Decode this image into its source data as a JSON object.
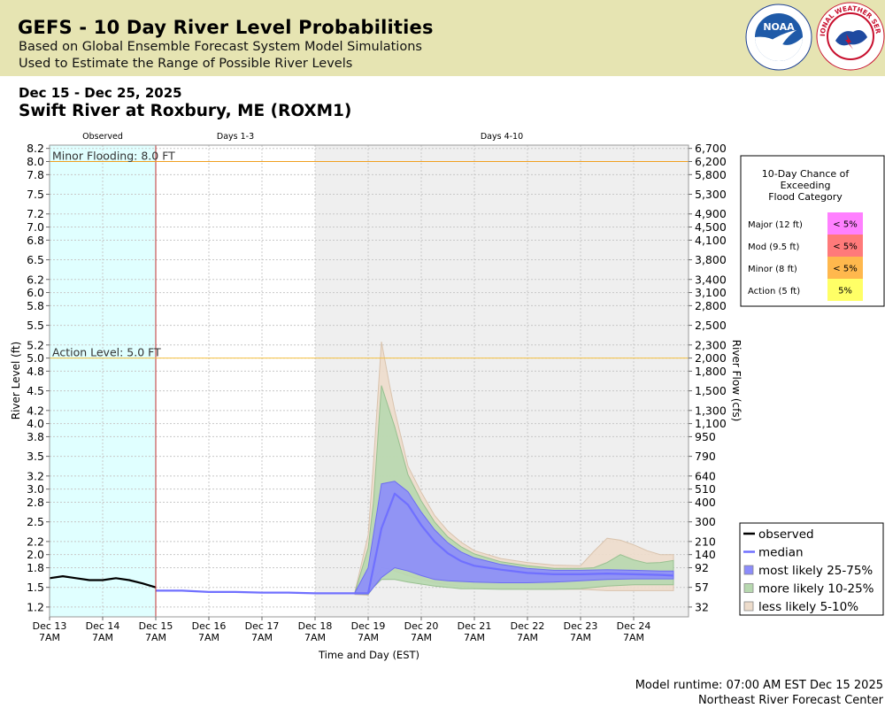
{
  "header": {
    "title": "GEFS - 10 Day River Level Probabilities",
    "subtitle1": "Based on Global Ensemble Forecast System Model Simulations",
    "subtitle2": "Used to Estimate the Range of Possible River Levels",
    "date_range": "Dec 15 - Dec 25, 2025",
    "station": "Swift River at Roxbury, ME (ROXM1)"
  },
  "logos": {
    "noaa_text": "NOAA",
    "nws_text": "NATIONAL WEATHER SERVICE"
  },
  "footer": {
    "runtime": "Model runtime: 07:00 AM EST Dec 15 2025",
    "center": "Northeast River Forecast Center"
  },
  "colors": {
    "observed_shade": "#e0ffff",
    "forecast_shade": "#efefef",
    "flood_line": "#f0a020",
    "action_line": "#f5c040",
    "median": "#7070ff",
    "band_25_75": "#8c8cfb",
    "band_10_25": "#b7d8af",
    "band_5_10": "#eddccb",
    "observed_line": "#000000"
  },
  "chart_data": {
    "type": "area",
    "periods": [
      "Observed",
      "Days 1-3",
      "Days 4-10"
    ],
    "xlabel": "Time and Day (EST)",
    "ylabel": "River Level (ft)",
    "ylabel_right": "River Flow (cfs)",
    "ylim": [
      1.05,
      8.25
    ],
    "grid": true,
    "x_ticks": [
      {
        "day": "Dec 13",
        "time": "7AM",
        "t": 0
      },
      {
        "day": "Dec 14",
        "time": "7AM",
        "t": 1
      },
      {
        "day": "Dec 15",
        "time": "7AM",
        "t": 2
      },
      {
        "day": "Dec 16",
        "time": "7AM",
        "t": 3
      },
      {
        "day": "Dec 17",
        "time": "7AM",
        "t": 4
      },
      {
        "day": "Dec 18",
        "time": "7AM",
        "t": 5
      },
      {
        "day": "Dec 19",
        "time": "7AM",
        "t": 6
      },
      {
        "day": "Dec 20",
        "time": "7AM",
        "t": 7
      },
      {
        "day": "Dec 21",
        "time": "7AM",
        "t": 8
      },
      {
        "day": "Dec 22",
        "time": "7AM",
        "t": 9
      },
      {
        "day": "Dec 23",
        "time": "7AM",
        "t": 10
      },
      {
        "day": "Dec 24",
        "time": "7AM",
        "t": 11
      }
    ],
    "left_ticks": [
      1.2,
      1.5,
      1.8,
      2.0,
      2.2,
      2.5,
      2.8,
      3.0,
      3.2,
      3.5,
      3.8,
      4.0,
      4.2,
      4.5,
      4.8,
      5.0,
      5.2,
      5.5,
      5.8,
      6.0,
      6.2,
      6.5,
      6.8,
      7.0,
      7.2,
      7.5,
      7.8,
      8.0,
      8.2
    ],
    "left_tick_labels": [
      "1.2",
      "1.5",
      "1.8",
      "2.0",
      "2.2",
      "2.5",
      "2.8",
      "3.0",
      "3.2",
      "3.5",
      "3.8",
      "4.0",
      "4.2",
      "4.5",
      "4.8",
      "5.0",
      "5.2",
      "5.5",
      "5.8",
      "6.0",
      "6.2",
      "6.5",
      "6.8",
      "7.0",
      "7.2",
      "7.5",
      "7.8",
      "8.0",
      "8.2"
    ],
    "right_ticks": [
      {
        "stage": 1.2,
        "label": "32"
      },
      {
        "stage": 1.5,
        "label": "57"
      },
      {
        "stage": 1.8,
        "label": "92"
      },
      {
        "stage": 2.0,
        "label": "140"
      },
      {
        "stage": 2.2,
        "label": "210"
      },
      {
        "stage": 2.5,
        "label": "300"
      },
      {
        "stage": 2.8,
        "label": "400"
      },
      {
        "stage": 3.0,
        "label": "510"
      },
      {
        "stage": 3.2,
        "label": "640"
      },
      {
        "stage": 3.5,
        "label": "790"
      },
      {
        "stage": 3.8,
        "label": "950"
      },
      {
        "stage": 4.0,
        "label": "1,100"
      },
      {
        "stage": 4.2,
        "label": "1,300"
      },
      {
        "stage": 4.5,
        "label": "1,500"
      },
      {
        "stage": 4.8,
        "label": "1,800"
      },
      {
        "stage": 5.0,
        "label": "2,000"
      },
      {
        "stage": 5.2,
        "label": "2,300"
      },
      {
        "stage": 5.5,
        "label": "2,500"
      },
      {
        "stage": 5.8,
        "label": "2,800"
      },
      {
        "stage": 6.0,
        "label": "3,100"
      },
      {
        "stage": 6.2,
        "label": "3,400"
      },
      {
        "stage": 6.5,
        "label": "3,800"
      },
      {
        "stage": 6.8,
        "label": "4,100"
      },
      {
        "stage": 7.0,
        "label": "4,500"
      },
      {
        "stage": 7.2,
        "label": "4,900"
      },
      {
        "stage": 7.5,
        "label": "5,300"
      },
      {
        "stage": 7.8,
        "label": "5,800"
      },
      {
        "stage": 8.0,
        "label": "6,200"
      },
      {
        "stage": 8.2,
        "label": "6,700"
      }
    ],
    "period_boundaries": {
      "observed_start": 0,
      "forecast_start": 2,
      "days4_start": 5,
      "end": 12.05
    },
    "thresholds": [
      {
        "name": "Minor Flooding",
        "label": "Minor Flooding: 8.0 FT",
        "value": 8.0
      },
      {
        "name": "Action Level",
        "label": "Action Level: 5.0 FT",
        "value": 5.0
      }
    ],
    "series": [
      {
        "name": "observed",
        "x": [
          0,
          0.25,
          0.5,
          0.75,
          1,
          1.25,
          1.5,
          1.75,
          2
        ],
        "y": [
          1.64,
          1.67,
          1.64,
          1.61,
          1.61,
          1.64,
          1.61,
          1.56,
          1.5
        ]
      },
      {
        "name": "median",
        "x": [
          2,
          2.5,
          3,
          3.5,
          4,
          4.5,
          5,
          5.5,
          5.75,
          6,
          6.25,
          6.5,
          6.75,
          7,
          7.25,
          7.5,
          7.75,
          8,
          8.5,
          9,
          9.5,
          10,
          10.5,
          11,
          11.5,
          11.75
        ],
        "y": [
          1.45,
          1.45,
          1.43,
          1.43,
          1.42,
          1.42,
          1.41,
          1.41,
          1.41,
          1.41,
          2.4,
          2.93,
          2.76,
          2.45,
          2.2,
          2.02,
          1.9,
          1.83,
          1.77,
          1.72,
          1.7,
          1.7,
          1.71,
          1.7,
          1.69,
          1.68
        ]
      },
      {
        "name": "most likely 25-75%",
        "x": [
          5.75,
          6,
          6.25,
          6.5,
          6.75,
          7,
          7.25,
          7.5,
          7.75,
          8,
          8.5,
          9,
          9.5,
          10,
          10.5,
          11,
          11.5,
          11.75
        ],
        "lower": [
          1.4,
          1.4,
          1.65,
          1.8,
          1.75,
          1.68,
          1.62,
          1.6,
          1.59,
          1.58,
          1.57,
          1.57,
          1.58,
          1.6,
          1.62,
          1.63,
          1.63,
          1.63
        ],
        "upper": [
          1.42,
          1.8,
          3.08,
          3.12,
          2.96,
          2.65,
          2.38,
          2.18,
          2.04,
          1.95,
          1.85,
          1.79,
          1.76,
          1.76,
          1.77,
          1.76,
          1.75,
          1.75
        ]
      },
      {
        "name": "more likely 10-25%",
        "x": [
          5.75,
          6,
          6.1,
          6.25,
          6.5,
          6.75,
          7,
          7.25,
          7.5,
          7.75,
          8,
          8.5,
          9,
          9.5,
          10,
          10.25,
          10.5,
          10.75,
          11,
          11.25,
          11.5,
          11.75
        ],
        "lower": [
          1.4,
          1.39,
          1.5,
          1.62,
          1.62,
          1.58,
          1.55,
          1.52,
          1.5,
          1.48,
          1.48,
          1.47,
          1.47,
          1.47,
          1.48,
          1.5,
          1.52,
          1.53,
          1.54,
          1.54,
          1.54,
          1.54
        ],
        "upper": [
          1.42,
          2.1,
          2.8,
          4.58,
          3.95,
          3.22,
          2.82,
          2.5,
          2.27,
          2.12,
          2.01,
          1.89,
          1.83,
          1.79,
          1.79,
          1.8,
          1.88,
          2.0,
          1.92,
          1.87,
          1.88,
          1.91
        ]
      },
      {
        "name": "less likely 5-10%",
        "x": [
          5.75,
          6,
          6.1,
          6.25,
          6.4,
          6.5,
          6.75,
          7,
          7.25,
          7.5,
          7.75,
          8,
          8.5,
          9,
          9.5,
          10,
          10.25,
          10.5,
          10.75,
          11,
          11.25,
          11.5,
          11.75
        ],
        "lower": [
          1.39,
          1.38,
          1.6,
          1.8,
          1.78,
          1.75,
          1.68,
          1.62,
          1.57,
          1.54,
          1.52,
          1.5,
          1.49,
          1.47,
          1.47,
          1.47,
          1.46,
          1.45,
          1.45,
          1.45,
          1.45,
          1.45,
          1.45
        ],
        "upper": [
          1.43,
          2.3,
          3.4,
          5.25,
          4.6,
          4.2,
          3.35,
          2.95,
          2.6,
          2.36,
          2.19,
          2.06,
          1.94,
          1.88,
          1.84,
          1.83,
          2.05,
          2.25,
          2.22,
          2.15,
          2.06,
          2.0,
          2.0
        ]
      }
    ],
    "legend": {
      "placement": "bottom-right",
      "entries": [
        {
          "label": "observed",
          "kind": "line",
          "color": "#000000"
        },
        {
          "label": "median",
          "kind": "line",
          "color": "#7070ff"
        },
        {
          "label": "most likely 25-75%",
          "kind": "box",
          "color": "#8c8cfb"
        },
        {
          "label": "more likely 10-25%",
          "kind": "box",
          "color": "#b7d8af"
        },
        {
          "label": "less likely 5-10%",
          "kind": "box",
          "color": "#eddccb"
        }
      ]
    },
    "flood_table": {
      "title_lines": [
        "10-Day Chance of",
        "Exceeding",
        "Flood Category"
      ],
      "rows": [
        {
          "category": "Major (12 ft)",
          "chance": "< 5%",
          "color": "#ff80ff"
        },
        {
          "category": "Mod (9.5 ft)",
          "chance": "< 5%",
          "color": "#ff7a7a"
        },
        {
          "category": "Minor (8 ft)",
          "chance": "< 5%",
          "color": "#ffb84d"
        },
        {
          "category": "Action (5 ft)",
          "chance": "5%",
          "color": "#ffff66"
        }
      ]
    }
  }
}
